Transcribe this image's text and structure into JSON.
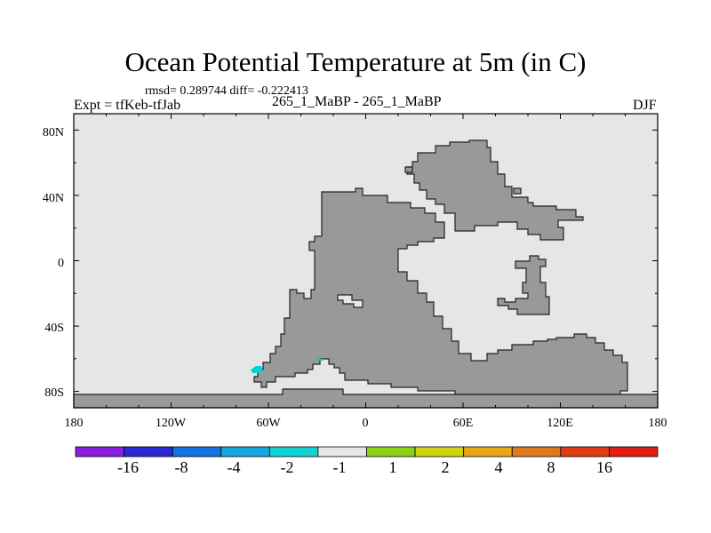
{
  "title": "Ocean Potential Temperature at 5m (in C)",
  "stats": "rmsd= 0.289744 diff= -0.222413",
  "experiment": "Expt = tfKeb-tfJab",
  "center_label": "265_1_MaBP - 265_1_MaBP",
  "season": "DJF",
  "map": {
    "projection": "cylindrical-equidistant",
    "lon_range": [
      -180,
      180
    ],
    "lat_range": [
      -90,
      90
    ],
    "lat_tick_labels": [
      "80N",
      "40N",
      "0",
      "40S",
      "80S"
    ],
    "lon_tick_labels": [
      "180",
      "120W",
      "60W",
      "0",
      "60E",
      "120E",
      "180"
    ],
    "ocean_color": "#e6e6e6",
    "land_color": "#999999",
    "anomaly_color": "#00d4d4"
  },
  "colorbar": {
    "colors": [
      "#8a1ee0",
      "#2a2ad4",
      "#1473e0",
      "#14a8e0",
      "#14d2d2",
      "#e6e6e6",
      "#8ad214",
      "#d2d214",
      "#e6a814",
      "#e0781e",
      "#e03c14",
      "#e01e14"
    ],
    "labels": [
      "-16",
      "-8",
      "-4",
      "-2",
      "-1",
      "1",
      "2",
      "4",
      "8",
      "16"
    ]
  }
}
